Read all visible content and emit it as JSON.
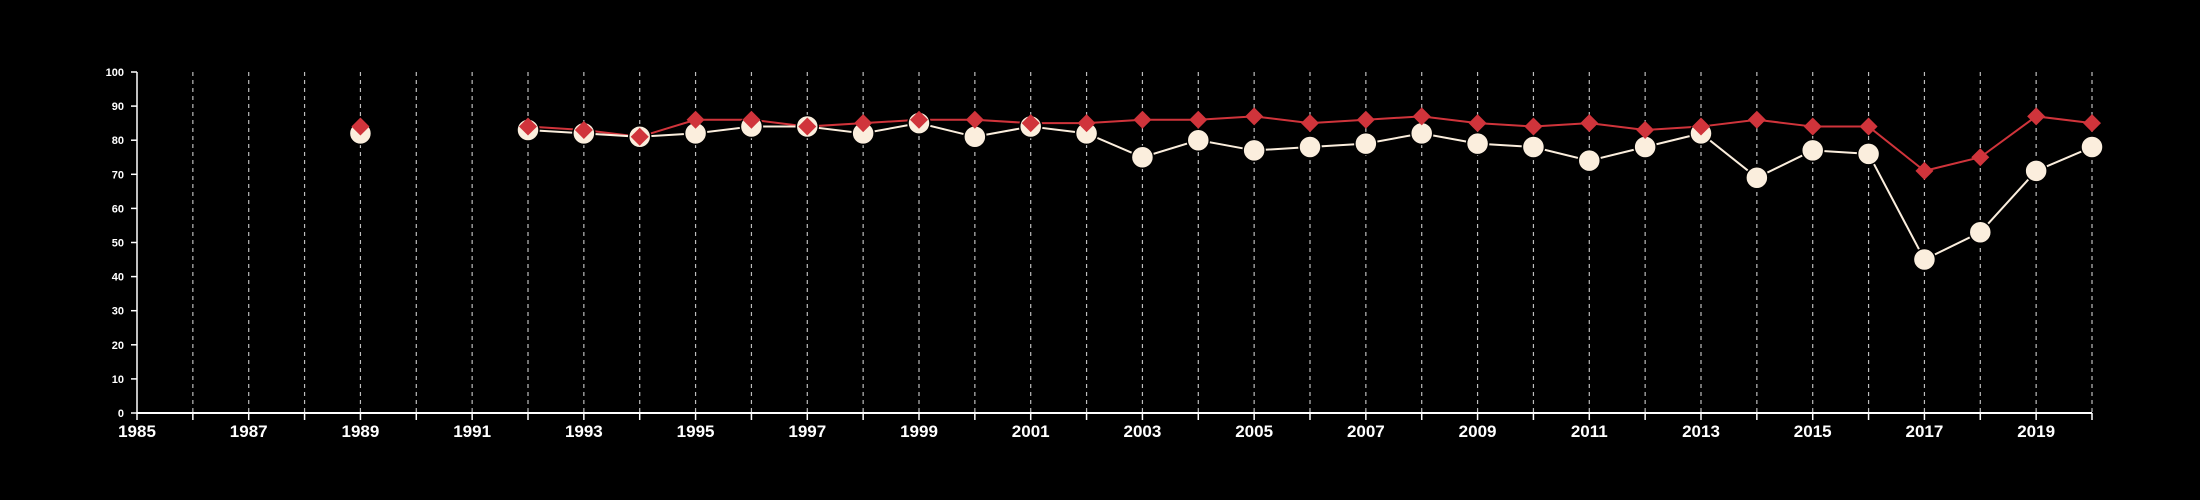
{
  "chart_data": {
    "type": "line",
    "title": "",
    "xlabel": "",
    "ylabel": "",
    "xlim": [
      1985,
      2020
    ],
    "ylim": [
      0,
      100
    ],
    "grid": {
      "vertical": true,
      "horizontal": false,
      "style": "dashed"
    },
    "x_ticks": [
      1985,
      1987,
      1989,
      1991,
      1993,
      1995,
      1997,
      1999,
      2001,
      2003,
      2005,
      2007,
      2009,
      2011,
      2013,
      2015,
      2017,
      2019
    ],
    "y_ticks": [
      0,
      10,
      20,
      30,
      40,
      50,
      60,
      70,
      80,
      90,
      100
    ],
    "series": [
      {
        "marker": "diamond",
        "color": "#d0343b",
        "points": [
          [
            1989,
            84
          ],
          [
            1992,
            84
          ],
          [
            1993,
            83
          ],
          [
            1994,
            81
          ],
          [
            1995,
            86
          ],
          [
            1996,
            86
          ],
          [
            1997,
            84
          ],
          [
            1998,
            85
          ],
          [
            1999,
            86
          ],
          [
            2000,
            86
          ],
          [
            2001,
            85
          ],
          [
            2002,
            85
          ],
          [
            2003,
            86
          ],
          [
            2004,
            86
          ],
          [
            2005,
            87
          ],
          [
            2006,
            85
          ],
          [
            2007,
            86
          ],
          [
            2008,
            87
          ],
          [
            2009,
            85
          ],
          [
            2010,
            84
          ],
          [
            2011,
            85
          ],
          [
            2012,
            83
          ],
          [
            2013,
            84
          ],
          [
            2014,
            86
          ],
          [
            2015,
            84
          ],
          [
            2016,
            84
          ],
          [
            2017,
            71
          ],
          [
            2018,
            75
          ],
          [
            2019,
            87
          ],
          [
            2020,
            85
          ]
        ]
      },
      {
        "marker": "circle",
        "color": "#fbeedd",
        "points": [
          [
            1989,
            82
          ],
          [
            1992,
            83
          ],
          [
            1993,
            82
          ],
          [
            1994,
            81
          ],
          [
            1995,
            82
          ],
          [
            1996,
            84
          ],
          [
            1997,
            84
          ],
          [
            1998,
            82
          ],
          [
            1999,
            85
          ],
          [
            2000,
            81
          ],
          [
            2001,
            84
          ],
          [
            2002,
            82
          ],
          [
            2003,
            75
          ],
          [
            2004,
            80
          ],
          [
            2005,
            77
          ],
          [
            2006,
            78
          ],
          [
            2007,
            79
          ],
          [
            2008,
            82
          ],
          [
            2009,
            79
          ],
          [
            2010,
            78
          ],
          [
            2011,
            74
          ],
          [
            2012,
            78
          ],
          [
            2013,
            82
          ],
          [
            2014,
            69
          ],
          [
            2015,
            77
          ],
          [
            2016,
            76
          ],
          [
            2017,
            45
          ],
          [
            2018,
            53
          ],
          [
            2019,
            71
          ],
          [
            2020,
            78
          ]
        ]
      }
    ]
  }
}
